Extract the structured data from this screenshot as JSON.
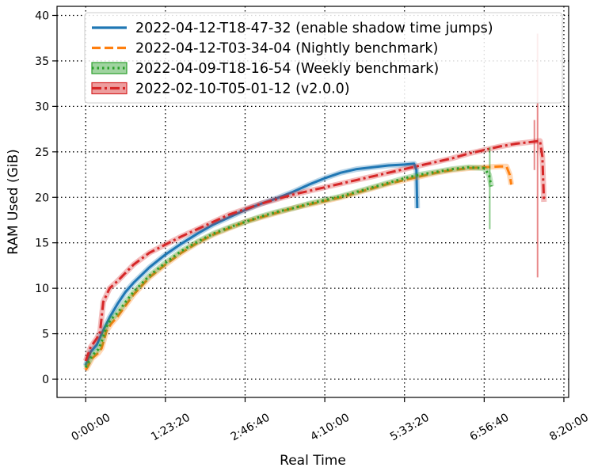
{
  "chart_data": {
    "type": "line",
    "xlabel": "Real Time",
    "ylabel": "RAM Used (GiB)",
    "xlim": [
      -1800,
      30300
    ],
    "ylim": [
      -2,
      41
    ],
    "x_ticks": [
      0,
      5000,
      10000,
      15000,
      20000,
      25000,
      30000
    ],
    "x_tick_labels": [
      "0:00:00",
      "1:23:20",
      "2:46:40",
      "4:10:00",
      "5:33:20",
      "6:56:40",
      "8:20:00"
    ],
    "y_ticks": [
      0,
      5,
      10,
      15,
      20,
      25,
      30,
      35,
      40
    ],
    "y_tick_labels": [
      "0",
      "5",
      "10",
      "15",
      "20",
      "25",
      "30",
      "35",
      "40"
    ],
    "grid": true,
    "legend_position": "top-right",
    "series": [
      {
        "name": "2022-04-12-T18-47-32 (enable shadow time jumps)",
        "color": "#1f77b4",
        "style": "solid",
        "x": [
          0,
          300,
          700,
          1000,
          1500,
          2000,
          2500,
          3000,
          4000,
          5000,
          6000,
          7000,
          8000,
          9000,
          10000,
          11000,
          12000,
          13000,
          14000,
          15000,
          16000,
          17000,
          18000,
          19000,
          20000,
          20600,
          20750,
          20800
        ],
        "y": [
          1.5,
          3.0,
          3.8,
          5.0,
          6.8,
          8.3,
          9.6,
          10.6,
          12.3,
          13.7,
          14.9,
          16.0,
          17.0,
          17.8,
          18.6,
          19.3,
          19.9,
          20.6,
          21.4,
          22.1,
          22.7,
          23.1,
          23.3,
          23.5,
          23.6,
          23.7,
          23.0,
          18.8
        ]
      },
      {
        "name": "2022-04-12-T03-34-04 (Nightly benchmark)",
        "color": "#ff7f0e",
        "style": "dashed",
        "x": [
          0,
          400,
          800,
          1000,
          1300,
          1600,
          2000,
          2500,
          3000,
          4000,
          5000,
          6000,
          7000,
          8000,
          9000,
          10000,
          11000,
          12000,
          13000,
          14000,
          15000,
          16000,
          17000,
          18000,
          19000,
          20000,
          21000,
          22000,
          23000,
          24000,
          25000,
          26000,
          26400,
          26600,
          26700
        ],
        "y": [
          1.0,
          2.3,
          2.9,
          3.4,
          5.3,
          6.1,
          6.9,
          8.1,
          9.3,
          11.2,
          12.6,
          13.9,
          15.0,
          15.9,
          16.6,
          17.3,
          17.8,
          18.3,
          18.8,
          19.2,
          19.6,
          20.0,
          20.5,
          21.0,
          21.5,
          21.9,
          22.3,
          22.7,
          23.0,
          23.2,
          23.3,
          23.4,
          23.4,
          22.5,
          21.4
        ]
      },
      {
        "name": "2022-04-09-T18-16-54 (Weekly benchmark)",
        "color": "#2ca02c",
        "style": "dotted",
        "x": [
          0,
          400,
          800,
          1000,
          1300,
          1600,
          2000,
          2500,
          3000,
          4000,
          5000,
          6000,
          7000,
          8000,
          9000,
          10000,
          11000,
          12000,
          13000,
          14000,
          15000,
          16000,
          17000,
          18000,
          19000,
          20000,
          21000,
          22000,
          23000,
          24000,
          25000,
          25300,
          25450
        ],
        "y": [
          1.3,
          2.6,
          3.3,
          4.1,
          5.8,
          6.6,
          7.3,
          8.5,
          9.6,
          11.4,
          12.8,
          14.1,
          15.1,
          16.0,
          16.7,
          17.3,
          17.9,
          18.4,
          18.8,
          19.3,
          19.7,
          20.1,
          20.6,
          21.1,
          21.6,
          22.1,
          22.5,
          22.8,
          23.1,
          23.3,
          23.2,
          22.5,
          21.2
        ]
      },
      {
        "name": "2022-02-10-T05-01-12 (v2.0.0)",
        "color": "#d62728",
        "style": "dashdot",
        "x": [
          0,
          300,
          700,
          900,
          1100,
          1500,
          2000,
          3000,
          4000,
          5000,
          6000,
          7000,
          8000,
          9000,
          10000,
          11000,
          12000,
          13000,
          14000,
          15000,
          16000,
          17000,
          18000,
          19000,
          20000,
          21000,
          22000,
          23000,
          24000,
          25000,
          26000,
          27000,
          28000,
          28500,
          28650,
          28750
        ],
        "y": [
          2.0,
          3.5,
          4.5,
          5.2,
          8.5,
          10.0,
          10.8,
          12.6,
          13.9,
          14.8,
          15.7,
          16.5,
          17.3,
          18.1,
          18.7,
          19.3,
          19.8,
          20.3,
          20.7,
          21.1,
          21.5,
          21.9,
          22.3,
          22.7,
          23.1,
          23.5,
          23.9,
          24.3,
          24.8,
          25.2,
          25.6,
          25.9,
          26.1,
          26.2,
          24.5,
          19.5
        ]
      }
    ]
  }
}
